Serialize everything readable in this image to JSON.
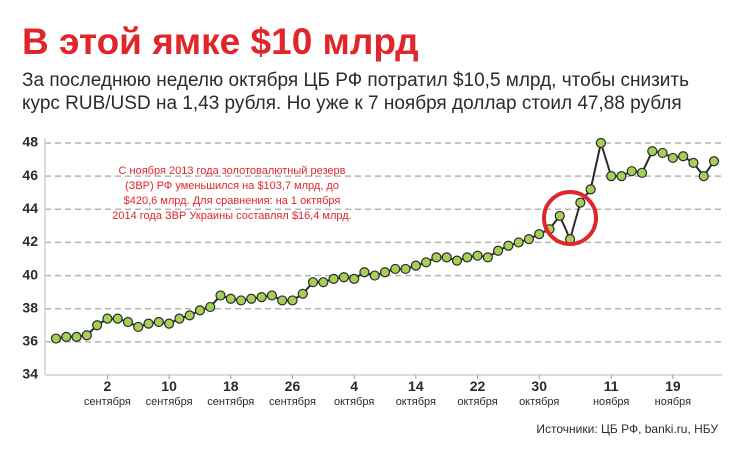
{
  "chart_data": {
    "type": "line",
    "title": "В этой ямке $10 млрд",
    "subtitle": [
      "За последнюю неделю октября ЦБ РФ потратил $10,5 млрд, чтобы снизить",
      "курс RUB/USD на 1,43 рубля. Но уже к 7 ноября доллар стоил 47,88 рубля"
    ],
    "annotation": [
      "С ноября 2013 года золотовалютный резерв",
      "(ЗВР) РФ уменьшился на $103,7 млрд, до",
      "$420,6 млрд. Для сравнения: на 1 октября",
      "2014 года ЗВР Украины составлял $16,4 млрд."
    ],
    "source": "Источники: ЦБ РФ, banki.ru, НБУ",
    "categories": [
      null,
      null,
      null,
      null,
      null,
      "2 сентября",
      null,
      null,
      null,
      null,
      null,
      "10 сентября",
      null,
      null,
      null,
      null,
      null,
      "18 сентября",
      null,
      null,
      null,
      null,
      null,
      "26 сентября",
      null,
      null,
      null,
      null,
      null,
      "4 октября",
      null,
      null,
      null,
      null,
      null,
      "14 октября",
      null,
      null,
      null,
      null,
      null,
      "22 октября",
      null,
      null,
      null,
      null,
      null,
      "30 октября",
      null,
      null,
      null,
      null,
      null,
      null,
      "11 ноября",
      null,
      null,
      null,
      null,
      null,
      "19 ноября",
      null,
      null,
      null,
      null
    ],
    "series": [
      {
        "name": "RUB/USD",
        "color": "#2b2b2b",
        "marker_color": "#a6cf57",
        "values": [
          36.2,
          36.3,
          36.3,
          36.4,
          37.0,
          37.4,
          37.4,
          37.2,
          36.9,
          37.1,
          37.2,
          37.1,
          37.4,
          37.6,
          37.9,
          38.1,
          38.8,
          38.6,
          38.5,
          38.6,
          38.7,
          38.8,
          38.5,
          38.5,
          38.9,
          39.6,
          39.6,
          39.8,
          39.9,
          39.8,
          40.2,
          40.0,
          40.2,
          40.4,
          40.4,
          40.6,
          40.8,
          41.1,
          41.1,
          40.9,
          41.1,
          41.2,
          41.1,
          41.5,
          41.8,
          42.0,
          42.2,
          42.5,
          42.8,
          43.6,
          42.2,
          44.4,
          45.2,
          48.0,
          46.0,
          46.0,
          46.3,
          46.2,
          47.5,
          47.4,
          47.1,
          47.2,
          46.8,
          46.0,
          46.9
        ]
      }
    ],
    "ylim": [
      34,
      48
    ],
    "yticks": [
      34,
      36,
      38,
      40,
      42,
      44,
      46,
      48
    ],
    "grid": true
  }
}
